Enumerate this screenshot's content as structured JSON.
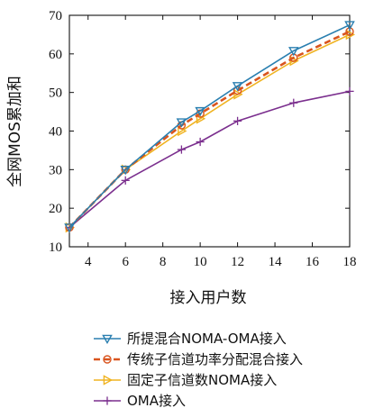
{
  "chart_data": {
    "type": "line",
    "xlabel": "接入用户数",
    "ylabel": "全网MOS累加和",
    "xlim": [
      3,
      18
    ],
    "ylim": [
      10,
      70
    ],
    "xticks": [
      4,
      6,
      8,
      10,
      12,
      14,
      16,
      18
    ],
    "yticks": [
      10,
      20,
      30,
      40,
      50,
      60,
      70
    ],
    "grid": false,
    "legend_position": "bottom",
    "series": [
      {
        "name": "所提混合NOMA-OMA接入",
        "color": "#2a7fb0",
        "marker": "triangle-down",
        "dash": "solid",
        "x": [
          3,
          6,
          9,
          10,
          12,
          15,
          18
        ],
        "y": [
          15,
          30,
          42.3,
          45.2,
          51.7,
          60.8,
          67.5
        ]
      },
      {
        "name": "传统子信道功率分配混合接入",
        "color": "#d9541e",
        "marker": "circle",
        "dash": "dashed",
        "x": [
          3,
          6,
          9,
          10,
          12,
          15,
          18
        ],
        "y": [
          15,
          30,
          41.5,
          44.5,
          50.5,
          59.0,
          65.8
        ]
      },
      {
        "name": "固定子信道数NOMA接入",
        "color": "#f0b320",
        "marker": "triangle-right",
        "dash": "solid",
        "x": [
          3,
          6,
          9,
          10,
          12,
          15,
          18
        ],
        "y": [
          15,
          30,
          40.0,
          43.2,
          49.5,
          58.2,
          65.0
        ]
      },
      {
        "name": "OMA接入",
        "color": "#7b2f8e",
        "marker": "plus",
        "dash": "solid",
        "x": [
          3,
          6,
          9,
          10,
          12,
          15,
          18
        ],
        "y": [
          15,
          27.2,
          35.2,
          37.2,
          42.6,
          47.3,
          50.3
        ]
      }
    ]
  }
}
